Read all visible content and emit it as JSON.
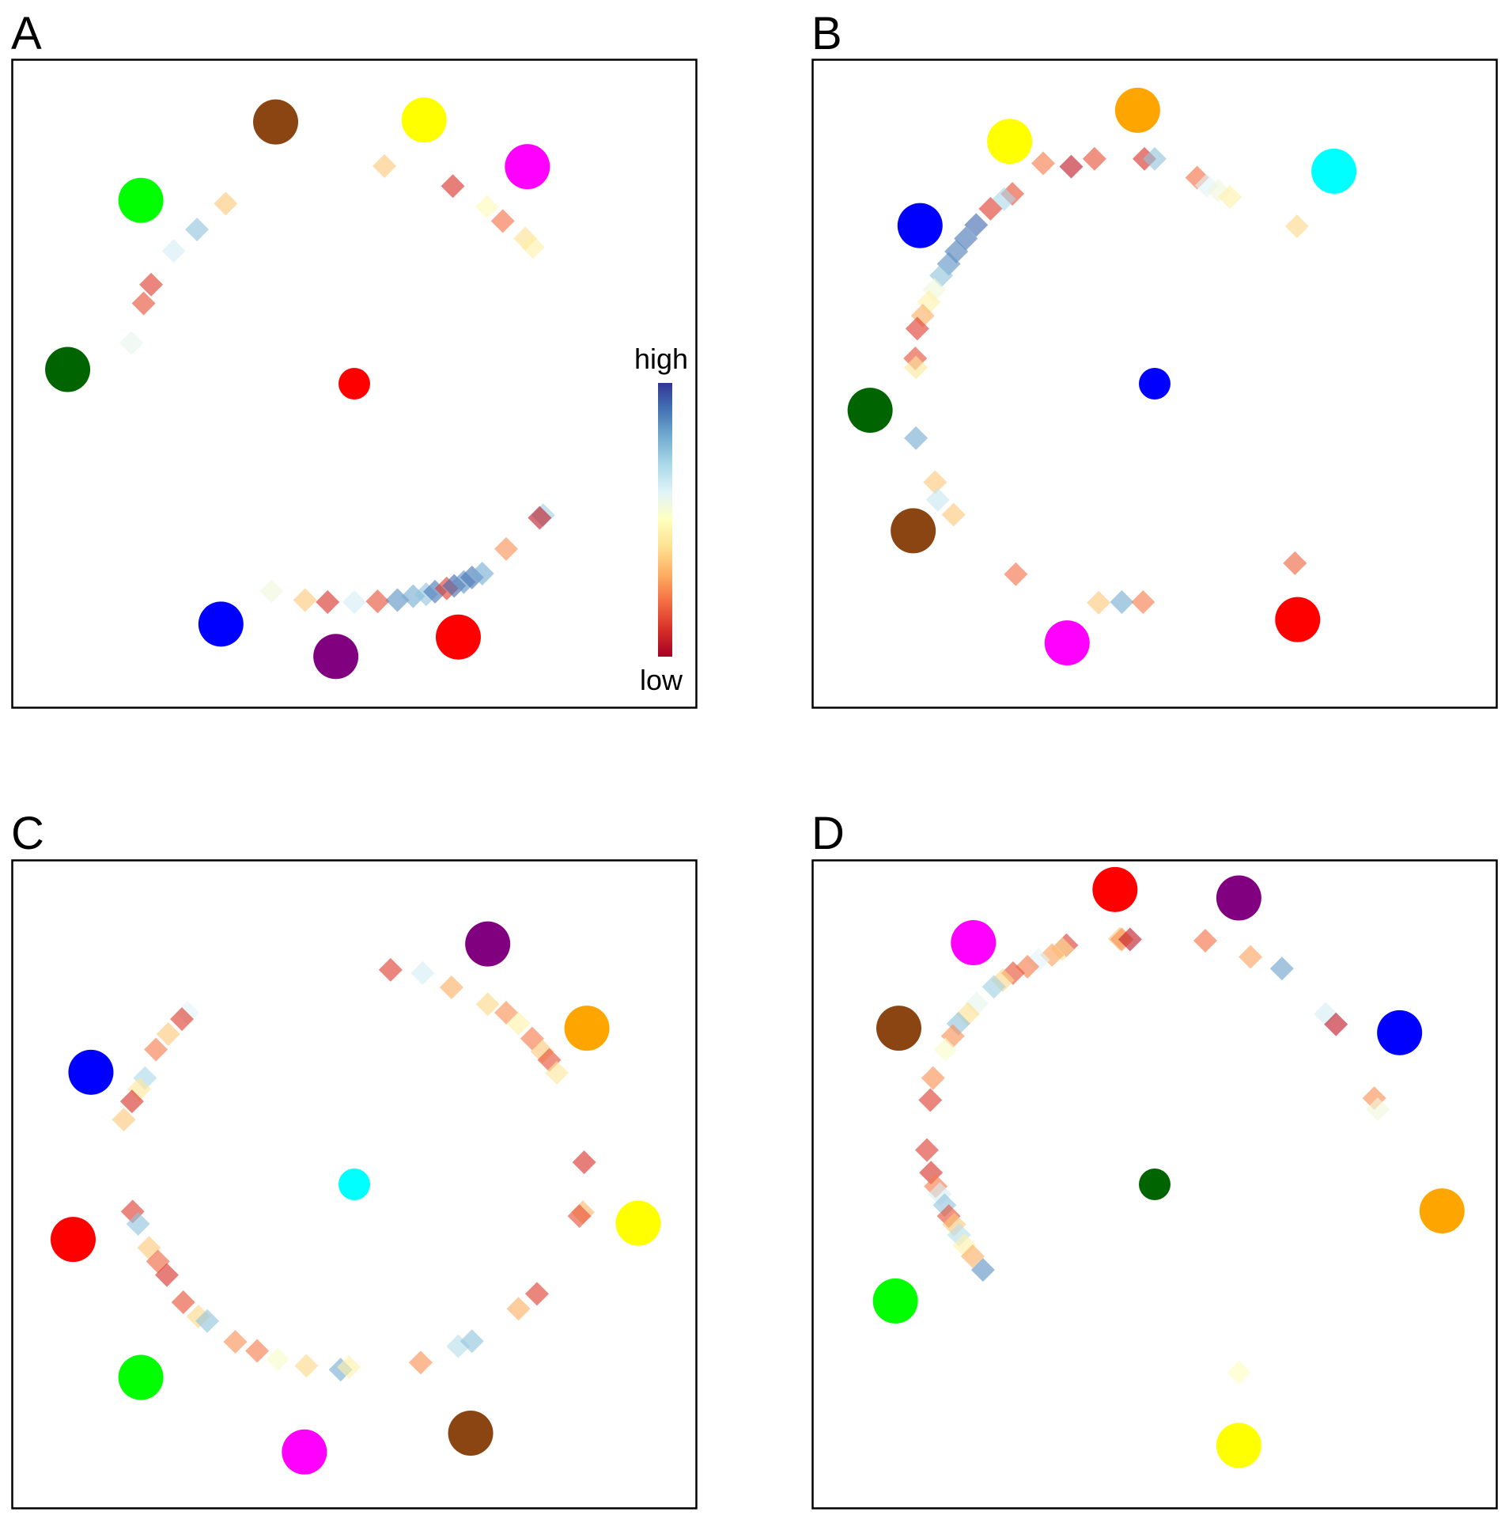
{
  "colorbar": {
    "high_label": "high",
    "low_label": "low",
    "palette": [
      "#a50026",
      "#d73027",
      "#f46d43",
      "#fdae61",
      "#fee090",
      "#ffffbf",
      "#e0f3f8",
      "#abd9e9",
      "#74add1",
      "#4575b4",
      "#313695"
    ]
  },
  "chart_data": [
    {
      "type": "scatter",
      "panel": "A",
      "xlim": [
        0,
        100
      ],
      "ylim": [
        0,
        100
      ],
      "center": {
        "x": 50,
        "y": 50,
        "color": "#ff0000"
      },
      "nodes": [
        {
          "x": 38.5,
          "y": 90.4,
          "color": "#8b4513"
        },
        {
          "x": 60.2,
          "y": 90.7,
          "color": "#ffff00"
        },
        {
          "x": 75.3,
          "y": 83.5,
          "color": "#ff00ff"
        },
        {
          "x": 18.8,
          "y": 78.3,
          "color": "#00ff00"
        },
        {
          "x": 8.1,
          "y": 52.2,
          "color": "#006400"
        },
        {
          "x": 30.5,
          "y": 12.9,
          "color": "#0000ff"
        },
        {
          "x": 47.3,
          "y": 7.9,
          "color": "#800080"
        },
        {
          "x": 65.2,
          "y": 10.9,
          "color": "#ff0000"
        }
      ],
      "points": [
        {
          "x": 54.4,
          "y": 83.6,
          "v": 0.35
        },
        {
          "x": 64.4,
          "y": 80.5,
          "v": 0.1
        },
        {
          "x": 69.4,
          "y": 77.3,
          "v": 0.48
        },
        {
          "x": 71.7,
          "y": 75.1,
          "v": 0.2
        },
        {
          "x": 75.0,
          "y": 72.4,
          "v": 0.4
        },
        {
          "x": 76.1,
          "y": 71.1,
          "v": 0.45
        },
        {
          "x": 31.2,
          "y": 77.8,
          "v": 0.35
        },
        {
          "x": 27.0,
          "y": 73.8,
          "v": 0.75
        },
        {
          "x": 23.6,
          "y": 70.5,
          "v": 0.62
        },
        {
          "x": 20.3,
          "y": 65.3,
          "v": 0.12
        },
        {
          "x": 19.2,
          "y": 62.4,
          "v": 0.15
        },
        {
          "x": 17.4,
          "y": 56.3,
          "v": 0.58
        },
        {
          "x": 37.9,
          "y": 18.0,
          "v": 0.55
        },
        {
          "x": 42.8,
          "y": 16.6,
          "v": 0.35
        },
        {
          "x": 46.1,
          "y": 16.3,
          "v": 0.1
        },
        {
          "x": 50.0,
          "y": 16.3,
          "v": 0.62
        },
        {
          "x": 53.4,
          "y": 16.4,
          "v": 0.15
        },
        {
          "x": 56.3,
          "y": 16.6,
          "v": 0.85
        },
        {
          "x": 58.6,
          "y": 17.2,
          "v": 0.8
        },
        {
          "x": 60.5,
          "y": 17.5,
          "v": 0.75
        },
        {
          "x": 61.8,
          "y": 17.9,
          "v": 0.9
        },
        {
          "x": 63.5,
          "y": 18.4,
          "v": 0.12
        },
        {
          "x": 64.6,
          "y": 18.8,
          "v": 0.92
        },
        {
          "x": 66.0,
          "y": 19.4,
          "v": 0.85
        },
        {
          "x": 67.2,
          "y": 20.1,
          "v": 0.9
        },
        {
          "x": 68.7,
          "y": 20.7,
          "v": 0.8
        },
        {
          "x": 72.2,
          "y": 24.5,
          "v": 0.25
        },
        {
          "x": 77.6,
          "y": 29.7,
          "v": 0.72
        },
        {
          "x": 77.1,
          "y": 29.3,
          "v": 0.05
        }
      ]
    },
    {
      "type": "scatter",
      "panel": "B",
      "xlim": [
        0,
        100
      ],
      "ylim": [
        0,
        100
      ],
      "center": {
        "x": 50,
        "y": 50,
        "color": "#0000ff"
      },
      "nodes": [
        {
          "x": 47.5,
          "y": 92.2,
          "color": "#ffa500"
        },
        {
          "x": 28.8,
          "y": 87.4,
          "color": "#ffff00"
        },
        {
          "x": 76.2,
          "y": 82.8,
          "color": "#00ffff"
        },
        {
          "x": 15.7,
          "y": 74.4,
          "color": "#0000ff"
        },
        {
          "x": 8.4,
          "y": 45.9,
          "color": "#006400"
        },
        {
          "x": 14.7,
          "y": 27.3,
          "color": "#8b4513"
        },
        {
          "x": 37.2,
          "y": 10.0,
          "color": "#ff00ff"
        },
        {
          "x": 70.9,
          "y": 13.6,
          "color": "#ff0000"
        }
      ],
      "points": [
        {
          "x": 33.7,
          "y": 84.0,
          "v": 0.22
        },
        {
          "x": 37.8,
          "y": 83.5,
          "v": 0.05
        },
        {
          "x": 41.2,
          "y": 84.7,
          "v": 0.15
        },
        {
          "x": 48.5,
          "y": 84.7,
          "v": 0.1
        },
        {
          "x": 50.0,
          "y": 84.7,
          "v": 0.75
        },
        {
          "x": 56.2,
          "y": 81.8,
          "v": 0.2
        },
        {
          "x": 57.6,
          "y": 80.6,
          "v": 0.6
        },
        {
          "x": 59.3,
          "y": 79.8,
          "v": 0.55
        },
        {
          "x": 61.0,
          "y": 78.8,
          "v": 0.45
        },
        {
          "x": 70.8,
          "y": 74.3,
          "v": 0.38
        },
        {
          "x": 29.2,
          "y": 79.3,
          "v": 0.15
        },
        {
          "x": 28.0,
          "y": 78.5,
          "v": 0.7
        },
        {
          "x": 26.0,
          "y": 77.0,
          "v": 0.12
        },
        {
          "x": 23.9,
          "y": 74.5,
          "v": 0.92
        },
        {
          "x": 22.4,
          "y": 72.4,
          "v": 0.9
        },
        {
          "x": 21.0,
          "y": 70.4,
          "v": 0.88
        },
        {
          "x": 19.9,
          "y": 68.5,
          "v": 0.85
        },
        {
          "x": 18.8,
          "y": 66.7,
          "v": 0.75
        },
        {
          "x": 17.8,
          "y": 64.5,
          "v": 0.55
        },
        {
          "x": 17.0,
          "y": 62.6,
          "v": 0.45
        },
        {
          "x": 16.1,
          "y": 60.5,
          "v": 0.3
        },
        {
          "x": 15.3,
          "y": 58.5,
          "v": 0.12
        },
        {
          "x": 15.0,
          "y": 53.9,
          "v": 0.15
        },
        {
          "x": 15.1,
          "y": 52.5,
          "v": 0.42
        },
        {
          "x": 15.1,
          "y": 41.6,
          "v": 0.8
        },
        {
          "x": 17.9,
          "y": 34.8,
          "v": 0.35
        },
        {
          "x": 18.3,
          "y": 32.1,
          "v": 0.65
        },
        {
          "x": 20.6,
          "y": 29.8,
          "v": 0.35
        },
        {
          "x": 29.7,
          "y": 20.6,
          "v": 0.2
        },
        {
          "x": 41.8,
          "y": 16.2,
          "v": 0.35
        },
        {
          "x": 45.2,
          "y": 16.3,
          "v": 0.8
        },
        {
          "x": 48.3,
          "y": 16.3,
          "v": 0.22
        },
        {
          "x": 70.5,
          "y": 22.3,
          "v": 0.18
        }
      ]
    },
    {
      "type": "scatter",
      "panel": "C",
      "xlim": [
        0,
        100
      ],
      "ylim": [
        0,
        100
      ],
      "center": {
        "x": 50,
        "y": 50,
        "color": "#00ffff"
      },
      "nodes": [
        {
          "x": 69.5,
          "y": 87.1,
          "color": "#800080"
        },
        {
          "x": 84.0,
          "y": 74.1,
          "color": "#ffa500"
        },
        {
          "x": 11.5,
          "y": 67.3,
          "color": "#0000ff"
        },
        {
          "x": 91.5,
          "y": 44.0,
          "color": "#ffff00"
        },
        {
          "x": 8.9,
          "y": 41.5,
          "color": "#ff0000"
        },
        {
          "x": 18.8,
          "y": 20.2,
          "color": "#00ff00"
        },
        {
          "x": 42.7,
          "y": 8.7,
          "color": "#ff00ff"
        },
        {
          "x": 67.0,
          "y": 11.6,
          "color": "#8b4513"
        }
      ],
      "points": [
        {
          "x": 55.3,
          "y": 83.1,
          "v": 0.12
        },
        {
          "x": 60.0,
          "y": 82.6,
          "v": 0.62
        },
        {
          "x": 64.2,
          "y": 80.4,
          "v": 0.3
        },
        {
          "x": 69.5,
          "y": 77.8,
          "v": 0.38
        },
        {
          "x": 72.2,
          "y": 76.5,
          "v": 0.25
        },
        {
          "x": 74.0,
          "y": 74.8,
          "v": 0.45
        },
        {
          "x": 76.0,
          "y": 72.5,
          "v": 0.22
        },
        {
          "x": 77.5,
          "y": 70.5,
          "v": 0.35
        },
        {
          "x": 78.5,
          "y": 69.2,
          "v": 0.15
        },
        {
          "x": 79.6,
          "y": 67.2,
          "v": 0.42
        },
        {
          "x": 25.6,
          "y": 76.5,
          "v": 0.6
        },
        {
          "x": 24.8,
          "y": 75.5,
          "v": 0.12
        },
        {
          "x": 22.8,
          "y": 73.2,
          "v": 0.35
        },
        {
          "x": 21.0,
          "y": 70.8,
          "v": 0.22
        },
        {
          "x": 19.4,
          "y": 66.4,
          "v": 0.7
        },
        {
          "x": 18.6,
          "y": 64.7,
          "v": 0.42
        },
        {
          "x": 17.5,
          "y": 62.8,
          "v": 0.1
        },
        {
          "x": 16.3,
          "y": 60.0,
          "v": 0.35
        },
        {
          "x": 83.6,
          "y": 53.4,
          "v": 0.1
        },
        {
          "x": 83.4,
          "y": 45.7,
          "v": 0.32
        },
        {
          "x": 82.9,
          "y": 45.1,
          "v": 0.15
        },
        {
          "x": 17.6,
          "y": 45.8,
          "v": 0.12
        },
        {
          "x": 18.4,
          "y": 43.9,
          "v": 0.75
        },
        {
          "x": 20.0,
          "y": 40.2,
          "v": 0.35
        },
        {
          "x": 21.3,
          "y": 38.1,
          "v": 0.18
        },
        {
          "x": 22.6,
          "y": 36.0,
          "v": 0.1
        },
        {
          "x": 25.0,
          "y": 31.8,
          "v": 0.15
        },
        {
          "x": 27.2,
          "y": 29.6,
          "v": 0.38
        },
        {
          "x": 28.5,
          "y": 28.9,
          "v": 0.75
        },
        {
          "x": 32.6,
          "y": 25.7,
          "v": 0.25
        },
        {
          "x": 35.8,
          "y": 24.3,
          "v": 0.22
        },
        {
          "x": 38.8,
          "y": 23.0,
          "v": 0.52
        },
        {
          "x": 43.0,
          "y": 22.0,
          "v": 0.38
        },
        {
          "x": 48.0,
          "y": 21.4,
          "v": 0.8
        },
        {
          "x": 49.2,
          "y": 21.8,
          "v": 0.45
        },
        {
          "x": 59.7,
          "y": 22.5,
          "v": 0.25
        },
        {
          "x": 65.2,
          "y": 25.0,
          "v": 0.68
        },
        {
          "x": 67.2,
          "y": 25.8,
          "v": 0.75
        },
        {
          "x": 74.0,
          "y": 30.8,
          "v": 0.3
        },
        {
          "x": 76.7,
          "y": 33.1,
          "v": 0.12
        }
      ]
    },
    {
      "type": "scatter",
      "panel": "D",
      "xlim": [
        0,
        100
      ],
      "ylim": [
        0,
        100
      ],
      "center": {
        "x": 50,
        "y": 50,
        "color": "#006400"
      },
      "nodes": [
        {
          "x": 44.2,
          "y": 95.5,
          "color": "#ff0000"
        },
        {
          "x": 62.3,
          "y": 94.2,
          "color": "#800080"
        },
        {
          "x": 23.5,
          "y": 87.3,
          "color": "#ff00ff"
        },
        {
          "x": 12.6,
          "y": 74.1,
          "color": "#8b4513"
        },
        {
          "x": 85.8,
          "y": 73.4,
          "color": "#0000ff"
        },
        {
          "x": 92.0,
          "y": 45.9,
          "color": "#ffa500"
        },
        {
          "x": 12.1,
          "y": 32.0,
          "color": "#00ff00"
        },
        {
          "x": 62.3,
          "y": 9.7,
          "color": "#ffff00"
        }
      ],
      "points": [
        {
          "x": 44.9,
          "y": 87.9,
          "v": 0.35
        },
        {
          "x": 45.2,
          "y": 87.8,
          "v": 0.25
        },
        {
          "x": 46.4,
          "y": 87.8,
          "v": 0.05
        },
        {
          "x": 57.4,
          "y": 87.6,
          "v": 0.2
        },
        {
          "x": 64.0,
          "y": 85.1,
          "v": 0.28
        },
        {
          "x": 68.6,
          "y": 83.3,
          "v": 0.82
        },
        {
          "x": 75.0,
          "y": 76.3,
          "v": 0.62
        },
        {
          "x": 76.5,
          "y": 74.7,
          "v": 0.05
        },
        {
          "x": 37.1,
          "y": 86.9,
          "v": 0.12
        },
        {
          "x": 36.5,
          "y": 86.3,
          "v": 0.4
        },
        {
          "x": 35.0,
          "y": 85.4,
          "v": 0.28
        },
        {
          "x": 33.0,
          "y": 84.6,
          "v": 0.6
        },
        {
          "x": 31.4,
          "y": 83.6,
          "v": 0.22
        },
        {
          "x": 29.3,
          "y": 82.6,
          "v": 0.15
        },
        {
          "x": 27.8,
          "y": 81.5,
          "v": 0.38
        },
        {
          "x": 26.5,
          "y": 80.5,
          "v": 0.72
        },
        {
          "x": 24.0,
          "y": 77.9,
          "v": 0.58
        },
        {
          "x": 22.7,
          "y": 76.3,
          "v": 0.4
        },
        {
          "x": 21.3,
          "y": 74.8,
          "v": 0.75
        },
        {
          "x": 20.5,
          "y": 72.9,
          "v": 0.25
        },
        {
          "x": 19.4,
          "y": 70.8,
          "v": 0.52
        },
        {
          "x": 17.6,
          "y": 66.4,
          "v": 0.25
        },
        {
          "x": 17.2,
          "y": 63.0,
          "v": 0.12
        },
        {
          "x": 82.1,
          "y": 63.3,
          "v": 0.25
        },
        {
          "x": 82.6,
          "y": 61.6,
          "v": 0.55
        },
        {
          "x": 16.7,
          "y": 55.3,
          "v": 0.12
        },
        {
          "x": 17.3,
          "y": 51.8,
          "v": 0.1
        },
        {
          "x": 18.0,
          "y": 49.7,
          "v": 0.22
        },
        {
          "x": 18.6,
          "y": 48.5,
          "v": 0.62
        },
        {
          "x": 19.3,
          "y": 46.8,
          "v": 0.75
        },
        {
          "x": 19.9,
          "y": 45.1,
          "v": 0.15
        },
        {
          "x": 20.7,
          "y": 43.8,
          "v": 0.35
        },
        {
          "x": 21.4,
          "y": 42.2,
          "v": 0.68
        },
        {
          "x": 22.2,
          "y": 40.6,
          "v": 0.45
        },
        {
          "x": 23.4,
          "y": 38.9,
          "v": 0.3
        },
        {
          "x": 24.9,
          "y": 36.8,
          "v": 0.85
        },
        {
          "x": 62.3,
          "y": 21.0,
          "v": 0.5
        }
      ]
    }
  ]
}
